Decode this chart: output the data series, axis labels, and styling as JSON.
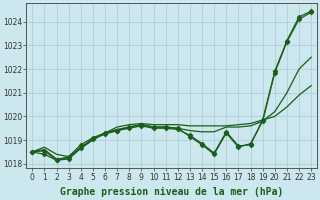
{
  "xlabel_label": "Graphe pression niveau de la mer (hPa)",
  "background_color": "#cce8ee",
  "plot_bg_color": "#cce8ee",
  "grid_color": "#aaccd4",
  "line_color": "#1a5c1a",
  "x": [
    0,
    1,
    2,
    3,
    4,
    5,
    6,
    7,
    8,
    9,
    10,
    11,
    12,
    13,
    14,
    15,
    16,
    17,
    18,
    19,
    20,
    21,
    22,
    23
  ],
  "series": [
    {
      "y": [
        1018.5,
        1018.7,
        1018.4,
        1018.3,
        1018.65,
        1019.0,
        1019.3,
        1019.55,
        1019.65,
        1019.7,
        1019.65,
        1019.65,
        1019.65,
        1019.6,
        1019.6,
        1019.6,
        1019.6,
        1019.65,
        1019.7,
        1019.85,
        1020.0,
        1020.4,
        1020.9,
        1021.3
      ],
      "markers": false
    },
    {
      "y": [
        1018.5,
        1018.6,
        1018.2,
        1018.25,
        1018.7,
        1019.05,
        1019.3,
        1019.45,
        1019.55,
        1019.65,
        1019.55,
        1019.55,
        1019.5,
        1019.4,
        1019.35,
        1019.35,
        1019.55,
        1019.55,
        1019.6,
        1019.8,
        1020.2,
        1021.0,
        1022.0,
        1022.5
      ],
      "markers": false
    },
    {
      "y": [
        1018.5,
        1018.55,
        1018.15,
        1018.2,
        1018.65,
        1019.05,
        1019.25,
        1019.4,
        1019.5,
        1019.6,
        1019.5,
        1019.5,
        1019.45,
        1019.2,
        1018.85,
        1018.45,
        1019.35,
        1018.75,
        1018.8,
        1019.85,
        1021.9,
        1023.2,
        1024.2,
        1024.45
      ],
      "markers": true
    },
    {
      "y": [
        1018.5,
        1018.4,
        1018.15,
        1018.3,
        1018.8,
        1019.1,
        1019.3,
        1019.4,
        1019.55,
        1019.65,
        1019.55,
        1019.55,
        1019.5,
        1019.15,
        1018.8,
        1018.4,
        1019.3,
        1018.7,
        1018.85,
        1019.8,
        1021.85,
        1023.15,
        1024.1,
        1024.4
      ],
      "markers": true
    }
  ],
  "ylim": [
    1017.8,
    1024.8
  ],
  "yticks": [
    1018,
    1019,
    1020,
    1021,
    1022,
    1023,
    1024
  ],
  "xticks": [
    0,
    1,
    2,
    3,
    4,
    5,
    6,
    7,
    8,
    9,
    10,
    11,
    12,
    13,
    14,
    15,
    16,
    17,
    18,
    19,
    20,
    21,
    22,
    23
  ],
  "tick_fontsize": 5.5,
  "xlabel_fontsize": 7,
  "marker": "D",
  "markersize": 2.5,
  "linewidth": 0.9
}
